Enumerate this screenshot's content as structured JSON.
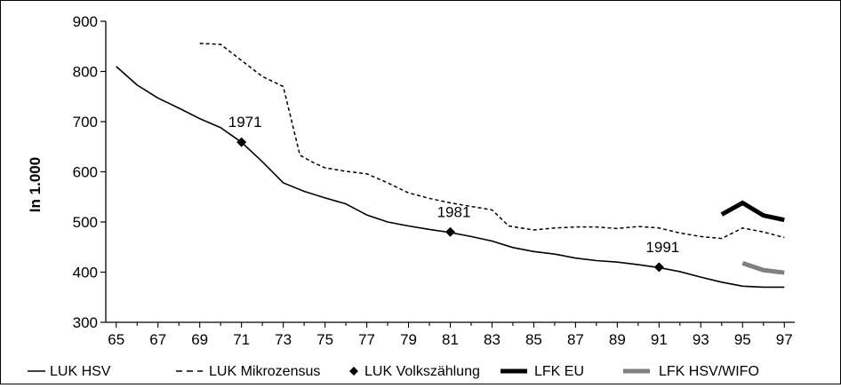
{
  "chart_data": {
    "type": "line",
    "title": "",
    "xlabel": "",
    "ylabel": "In 1.000",
    "ylim": [
      300,
      900
    ],
    "yticks": [
      "300",
      "400",
      "500",
      "600",
      "700",
      "800",
      "900"
    ],
    "xlim": [
      64.5,
      97.5
    ],
    "xticks": [
      "65",
      "67",
      "69",
      "71",
      "73",
      "75",
      "77",
      "79",
      "81",
      "83",
      "85",
      "87",
      "89",
      "91",
      "93",
      "95",
      "97"
    ],
    "grid": false,
    "legend_position": "bottom",
    "series": [
      {
        "name": "LUK HSV",
        "style": "solid",
        "color": "#000000",
        "x": [
          65,
          66,
          67,
          68,
          69,
          70,
          71,
          72,
          73,
          74,
          75,
          76,
          77,
          78,
          79,
          80,
          81,
          82,
          83,
          84,
          85,
          86,
          87,
          88,
          89,
          90,
          91,
          92,
          93,
          94,
          95,
          96,
          97
        ],
        "y": [
          810,
          773,
          747,
          727,
          706,
          688,
          659,
          620,
          578,
          561,
          548,
          536,
          514,
          500,
          492,
          485,
          479,
          471,
          462,
          449,
          441,
          436,
          428,
          423,
          420,
          415,
          409,
          401,
          390,
          380,
          372,
          370,
          370
        ]
      },
      {
        "name": "LUK Mikrozensus",
        "style": "dashed",
        "color": "#000000",
        "x": [
          69,
          70,
          71,
          72,
          73,
          73.8,
          74.5,
          75,
          76,
          77,
          78,
          79,
          80,
          81,
          82,
          83,
          83.8,
          85,
          86,
          87,
          88,
          89,
          90,
          91,
          92,
          93,
          94,
          95,
          96,
          97
        ],
        "y": [
          856,
          854,
          822,
          790,
          770,
          633,
          617,
          608,
          601,
          596,
          578,
          558,
          547,
          538,
          531,
          524,
          492,
          484,
          488,
          490,
          490,
          487,
          491,
          488,
          478,
          471,
          467,
          488,
          480,
          469
        ]
      },
      {
        "name": "LUK Volkszählung",
        "style": "markers",
        "color": "#000000",
        "x": [
          71,
          81,
          91
        ],
        "y": [
          659,
          480,
          410
        ],
        "labels": [
          "1971",
          "1981",
          "1991"
        ]
      },
      {
        "name": "LFK EU",
        "style": "thick",
        "color": "#000000",
        "x": [
          94,
          95,
          96,
          97
        ],
        "y": [
          515,
          538,
          513,
          504
        ]
      },
      {
        "name": "LFK HSV/WIFO",
        "style": "thick",
        "color": "#808080",
        "x": [
          95,
          96,
          97
        ],
        "y": [
          418,
          404,
          399
        ]
      }
    ]
  }
}
